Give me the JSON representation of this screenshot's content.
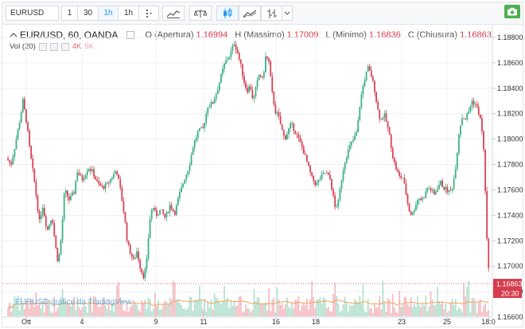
{
  "toolbar": {
    "symbol": "EURUSD",
    "intervals": [
      "1",
      "30",
      "1h",
      "1h"
    ],
    "active_interval": "1h",
    "more_icon": "vertical-dots-icon",
    "buttons": [
      "indicators-icon",
      "compare-scale-icon",
      "candles-icon",
      "area-chart-icon",
      "bar-chart-icon",
      "chevron-down-icon"
    ],
    "camera_icon": "camera-icon"
  },
  "legend": {
    "title": "EUR/USD, 60, OANDA",
    "open_label": "O (Apertura)",
    "open_value": "1.16994",
    "high_label": "H (Massimo)",
    "high_value": "1.17009",
    "low_label": "L (Minimo)",
    "low_value": "1.16836",
    "close_label": "C (Chiusura)",
    "close_value": "1.16863"
  },
  "volume_legend": {
    "name": "Vol (20)",
    "v1": "4K",
    "v2": "5K"
  },
  "attribution": "EURUSD grafico da TradingView",
  "colors": {
    "up": "#3db085",
    "down": "#d64455",
    "ma": "#f5a35b",
    "last_price": "#d63b4c",
    "grid": "#eef0f3"
  },
  "chart_data": {
    "type": "candlestick",
    "price_axis_ticks": [
      "1.18800",
      "1.18600",
      "1.18400",
      "1.18200",
      "1.18000",
      "1.17800",
      "1.17600",
      "1.17400",
      "1.17200",
      "1.17000",
      "1.16800",
      "1.16600"
    ],
    "ylim": [
      1.166,
      1.189
    ],
    "time_axis_ticks": [
      "Ott",
      "4",
      "9",
      "11",
      "16",
      "18",
      "23",
      "25",
      "18:0"
    ],
    "last_price_label": "1.16863",
    "countdown_label": "20:30",
    "close_path": [
      {
        "x": 0,
        "y": 1.1785
      },
      {
        "x": 6,
        "y": 1.178
      },
      {
        "x": 12,
        "y": 1.1798
      },
      {
        "x": 18,
        "y": 1.1818
      },
      {
        "x": 21,
        "y": 1.183
      },
      {
        "x": 26,
        "y": 1.1812
      },
      {
        "x": 30,
        "y": 1.179
      },
      {
        "x": 36,
        "y": 1.1765
      },
      {
        "x": 42,
        "y": 1.1735
      },
      {
        "x": 46,
        "y": 1.1748
      },
      {
        "x": 52,
        "y": 1.1728
      },
      {
        "x": 58,
        "y": 1.174
      },
      {
        "x": 62,
        "y": 1.1718
      },
      {
        "x": 66,
        "y": 1.1702
      },
      {
        "x": 70,
        "y": 1.1724
      },
      {
        "x": 74,
        "y": 1.176
      },
      {
        "x": 80,
        "y": 1.1752
      },
      {
        "x": 86,
        "y": 1.1758
      },
      {
        "x": 90,
        "y": 1.1775
      },
      {
        "x": 96,
        "y": 1.1768
      },
      {
        "x": 100,
        "y": 1.1772
      },
      {
        "x": 104,
        "y": 1.1778
      },
      {
        "x": 110,
        "y": 1.1774
      },
      {
        "x": 116,
        "y": 1.1765
      },
      {
        "x": 122,
        "y": 1.1762
      },
      {
        "x": 128,
        "y": 1.1764
      },
      {
        "x": 134,
        "y": 1.177
      },
      {
        "x": 140,
        "y": 1.1776
      },
      {
        "x": 145,
        "y": 1.176
      },
      {
        "x": 150,
        "y": 1.174
      },
      {
        "x": 154,
        "y": 1.1718
      },
      {
        "x": 158,
        "y": 1.171
      },
      {
        "x": 162,
        "y": 1.1704
      },
      {
        "x": 166,
        "y": 1.1712
      },
      {
        "x": 170,
        "y": 1.17
      },
      {
        "x": 174,
        "y": 1.1692
      },
      {
        "x": 178,
        "y": 1.17
      },
      {
        "x": 182,
        "y": 1.1735
      },
      {
        "x": 186,
        "y": 1.1748
      },
      {
        "x": 190,
        "y": 1.174
      },
      {
        "x": 196,
        "y": 1.1744
      },
      {
        "x": 202,
        "y": 1.1738
      },
      {
        "x": 208,
        "y": 1.1748
      },
      {
        "x": 214,
        "y": 1.1742
      },
      {
        "x": 220,
        "y": 1.1756
      },
      {
        "x": 226,
        "y": 1.1768
      },
      {
        "x": 232,
        "y": 1.1778
      },
      {
        "x": 238,
        "y": 1.1796
      },
      {
        "x": 244,
        "y": 1.1806
      },
      {
        "x": 250,
        "y": 1.1808
      },
      {
        "x": 256,
        "y": 1.1826
      },
      {
        "x": 262,
        "y": 1.1828
      },
      {
        "x": 268,
        "y": 1.1838
      },
      {
        "x": 274,
        "y": 1.1852
      },
      {
        "x": 278,
        "y": 1.186
      },
      {
        "x": 284,
        "y": 1.1866
      },
      {
        "x": 290,
        "y": 1.1876
      },
      {
        "x": 294,
        "y": 1.1868
      },
      {
        "x": 298,
        "y": 1.1858
      },
      {
        "x": 302,
        "y": 1.1846
      },
      {
        "x": 306,
        "y": 1.1838
      },
      {
        "x": 310,
        "y": 1.1842
      },
      {
        "x": 314,
        "y": 1.183
      },
      {
        "x": 318,
        "y": 1.1842
      },
      {
        "x": 322,
        "y": 1.1852
      },
      {
        "x": 326,
        "y": 1.1846
      },
      {
        "x": 330,
        "y": 1.1866
      },
      {
        "x": 334,
        "y": 1.186
      },
      {
        "x": 338,
        "y": 1.1836
      },
      {
        "x": 342,
        "y": 1.1822
      },
      {
        "x": 346,
        "y": 1.1818
      },
      {
        "x": 350,
        "y": 1.1808
      },
      {
        "x": 354,
        "y": 1.18
      },
      {
        "x": 358,
        "y": 1.1806
      },
      {
        "x": 362,
        "y": 1.1812
      },
      {
        "x": 366,
        "y": 1.1808
      },
      {
        "x": 370,
        "y": 1.1802
      },
      {
        "x": 376,
        "y": 1.1794
      },
      {
        "x": 382,
        "y": 1.1782
      },
      {
        "x": 388,
        "y": 1.177
      },
      {
        "x": 394,
        "y": 1.1764
      },
      {
        "x": 400,
        "y": 1.177
      },
      {
        "x": 406,
        "y": 1.1774
      },
      {
        "x": 412,
        "y": 1.1768
      },
      {
        "x": 418,
        "y": 1.1746
      },
      {
        "x": 422,
        "y": 1.175
      },
      {
        "x": 426,
        "y": 1.1768
      },
      {
        "x": 430,
        "y": 1.1782
      },
      {
        "x": 434,
        "y": 1.179
      },
      {
        "x": 438,
        "y": 1.1796
      },
      {
        "x": 442,
        "y": 1.18
      },
      {
        "x": 446,
        "y": 1.1806
      },
      {
        "x": 450,
        "y": 1.183
      },
      {
        "x": 455,
        "y": 1.1846
      },
      {
        "x": 460,
        "y": 1.1856
      },
      {
        "x": 464,
        "y": 1.185
      },
      {
        "x": 468,
        "y": 1.184
      },
      {
        "x": 472,
        "y": 1.1824
      },
      {
        "x": 476,
        "y": 1.1814
      },
      {
        "x": 480,
        "y": 1.182
      },
      {
        "x": 484,
        "y": 1.1812
      },
      {
        "x": 488,
        "y": 1.18
      },
      {
        "x": 492,
        "y": 1.1784
      },
      {
        "x": 496,
        "y": 1.1776
      },
      {
        "x": 500,
        "y": 1.177
      },
      {
        "x": 504,
        "y": 1.177
      },
      {
        "x": 508,
        "y": 1.1758
      },
      {
        "x": 512,
        "y": 1.1744
      },
      {
        "x": 516,
        "y": 1.174
      },
      {
        "x": 520,
        "y": 1.1748
      },
      {
        "x": 524,
        "y": 1.1754
      },
      {
        "x": 528,
        "y": 1.1752
      },
      {
        "x": 532,
        "y": 1.1756
      },
      {
        "x": 536,
        "y": 1.1762
      },
      {
        "x": 540,
        "y": 1.176
      },
      {
        "x": 544,
        "y": 1.1756
      },
      {
        "x": 548,
        "y": 1.1762
      },
      {
        "x": 552,
        "y": 1.1766
      },
      {
        "x": 556,
        "y": 1.1762
      },
      {
        "x": 560,
        "y": 1.176
      },
      {
        "x": 564,
        "y": 1.1758
      },
      {
        "x": 568,
        "y": 1.1764
      },
      {
        "x": 572,
        "y": 1.1782
      },
      {
        "x": 576,
        "y": 1.1808
      },
      {
        "x": 580,
        "y": 1.1818
      },
      {
        "x": 584,
        "y": 1.1816
      },
      {
        "x": 588,
        "y": 1.1822
      },
      {
        "x": 592,
        "y": 1.183
      },
      {
        "x": 596,
        "y": 1.1828
      },
      {
        "x": 600,
        "y": 1.1822
      },
      {
        "x": 604,
        "y": 1.1812
      },
      {
        "x": 607,
        "y": 1.179
      },
      {
        "x": 609,
        "y": 1.176
      },
      {
        "x": 611,
        "y": 1.1722
      },
      {
        "x": 613,
        "y": 1.1698
      },
      {
        "x": 615,
        "y": 1.1686
      }
    ]
  }
}
